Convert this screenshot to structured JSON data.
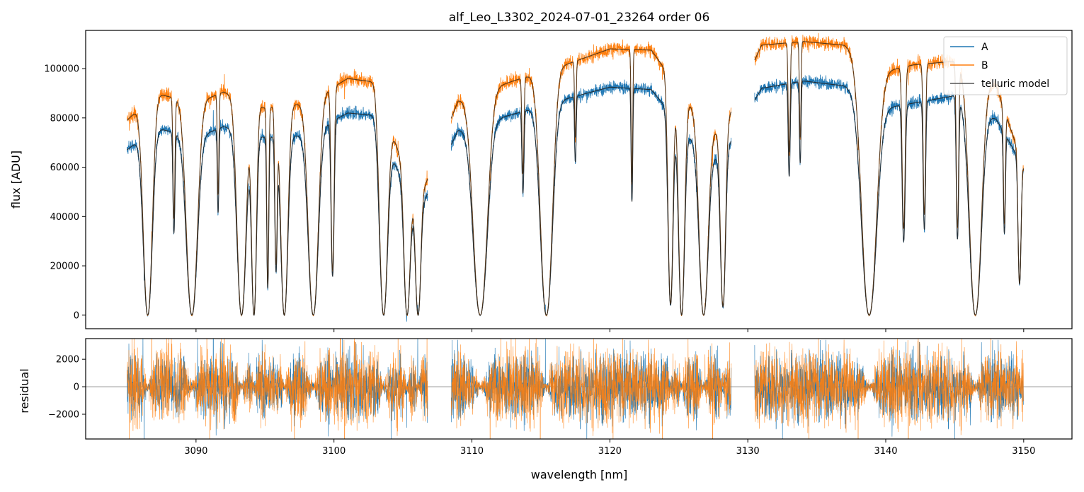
{
  "chart_data": [
    {
      "type": "line",
      "title": "alf_Leo_L3302_2024-07-01_23264  order 06",
      "xlabel": "",
      "ylabel": "flux [ADU]",
      "xlim": [
        3082,
        3153.5
      ],
      "ylim": [
        -5500,
        115500
      ],
      "yticks": [
        0,
        20000,
        40000,
        60000,
        80000,
        100000
      ],
      "ytick_labels": [
        "0",
        "20000",
        "40000",
        "60000",
        "80000",
        "100000"
      ],
      "grid": false,
      "legend_position": "top-right",
      "segments_nm": [
        [
          3085,
          3106.8
        ],
        [
          3108.5,
          3128.8
        ],
        [
          3130.5,
          3150
        ]
      ],
      "series": [
        {
          "name": "A",
          "color": "#1f77b4",
          "style": "measured flux, seeing-limited, noisy",
          "continuum": {
            "x": [
              3085,
              3087,
              3090,
              3092,
              3095,
              3098,
              3101,
              3103,
              3106,
              3109,
              3113,
              3117,
              3120,
              3123,
              3126,
              3128,
              3131,
              3134,
              3137,
              3140,
              3142,
              3145,
              3148,
              3150
            ],
            "y": [
              67000,
              76000,
              72000,
              76500,
              72000,
              73000,
              82000,
              81000,
              40000,
              75000,
              81500,
              88000,
              92500,
              91500,
              71000,
              63000,
              92000,
              95000,
              93000,
              84000,
              86000,
              89000,
              79500,
              60000
            ]
          }
        },
        {
          "name": "B",
          "color": "#ff7f0e",
          "style": "measured flux, noisy",
          "continuum": {
            "x": [
              3085,
              3087,
              3090,
              3092,
              3095,
              3098,
              3101,
              3103,
              3106,
              3109,
              3113,
              3117,
              3120,
              3123,
              3126,
              3128,
              3131,
              3134,
              3137,
              3140,
              3142,
              3145,
              3148,
              3150
            ],
            "y": [
              79000,
              90000,
              86000,
              90500,
              84000,
              86000,
              96000,
              94500,
              44000,
              87000,
              95000,
              102000,
              108000,
              107500,
              84000,
              73000,
              109500,
              111000,
              109500,
              99000,
              101500,
              103000,
              93000,
              60000
            ]
          }
        },
        {
          "name": "telluric model",
          "color": "#555555",
          "style": "smooth model"
        }
      ],
      "absorption_lines_nm": [
        {
          "x": 3086.5,
          "depth": 1.0,
          "width": 0.45
        },
        {
          "x": 3088.4,
          "depth": 0.55,
          "width": 0.1
        },
        {
          "x": 3089.7,
          "depth": 1.0,
          "width": 0.55
        },
        {
          "x": 3091.6,
          "depth": 0.45,
          "width": 0.08
        },
        {
          "x": 3093.3,
          "depth": 1.0,
          "width": 0.45
        },
        {
          "x": 3094.2,
          "depth": 1.0,
          "width": 0.25
        },
        {
          "x": 3095.2,
          "depth": 0.85,
          "width": 0.1
        },
        {
          "x": 3095.8,
          "depth": 0.75,
          "width": 0.12
        },
        {
          "x": 3096.4,
          "depth": 1.0,
          "width": 0.35
        },
        {
          "x": 3098.5,
          "depth": 1.0,
          "width": 0.5
        },
        {
          "x": 3099.9,
          "depth": 0.8,
          "width": 0.15
        },
        {
          "x": 3103.6,
          "depth": 1.0,
          "width": 0.4
        },
        {
          "x": 3105.3,
          "depth": 1.0,
          "width": 0.3
        },
        {
          "x": 3106.1,
          "depth": 1.0,
          "width": 0.25
        },
        {
          "x": 3110.6,
          "depth": 1.0,
          "width": 0.7
        },
        {
          "x": 3113.7,
          "depth": 0.4,
          "width": 0.1
        },
        {
          "x": 3115.4,
          "depth": 1.0,
          "width": 0.6
        },
        {
          "x": 3117.5,
          "depth": 0.3,
          "width": 0.08
        },
        {
          "x": 3121.6,
          "depth": 0.5,
          "width": 0.08
        },
        {
          "x": 3124.4,
          "depth": 0.95,
          "width": 0.25
        },
        {
          "x": 3125.2,
          "depth": 1.0,
          "width": 0.3
        },
        {
          "x": 3126.8,
          "depth": 1.0,
          "width": 0.45
        },
        {
          "x": 3128.2,
          "depth": 0.95,
          "width": 0.25
        },
        {
          "x": 3133.0,
          "depth": 0.4,
          "width": 0.1
        },
        {
          "x": 3133.8,
          "depth": 0.35,
          "width": 0.08
        },
        {
          "x": 3138.8,
          "depth": 1.0,
          "width": 0.75
        },
        {
          "x": 3141.3,
          "depth": 0.65,
          "width": 0.15
        },
        {
          "x": 3142.8,
          "depth": 0.6,
          "width": 0.12
        },
        {
          "x": 3145.2,
          "depth": 0.65,
          "width": 0.12
        },
        {
          "x": 3146.5,
          "depth": 1.0,
          "width": 0.6
        },
        {
          "x": 3148.6,
          "depth": 0.55,
          "width": 0.1
        },
        {
          "x": 3149.7,
          "depth": 0.8,
          "width": 0.15
        }
      ]
    },
    {
      "type": "line",
      "title": "",
      "xlabel": "wavelength [nm]",
      "ylabel": "residual",
      "xlim": [
        3082,
        3153.5
      ],
      "ylim": [
        -3800,
        3500
      ],
      "yticks": [
        -2000,
        0,
        2000
      ],
      "ytick_labels": [
        "−2000",
        "0",
        "2000"
      ],
      "xticks": [
        3090,
        3100,
        3110,
        3120,
        3130,
        3140,
        3150
      ],
      "xtick_labels": [
        "3090",
        "3100",
        "3110",
        "3120",
        "3130",
        "3140",
        "3150"
      ],
      "grid": false,
      "reference_line_y": 0,
      "series": [
        {
          "name": "A",
          "color": "#1f77b4",
          "style": "residual noise, typical amplitude ~1500"
        },
        {
          "name": "B",
          "color": "#ff7f0e",
          "style": "residual noise, typical amplitude ~1800"
        }
      ]
    }
  ]
}
